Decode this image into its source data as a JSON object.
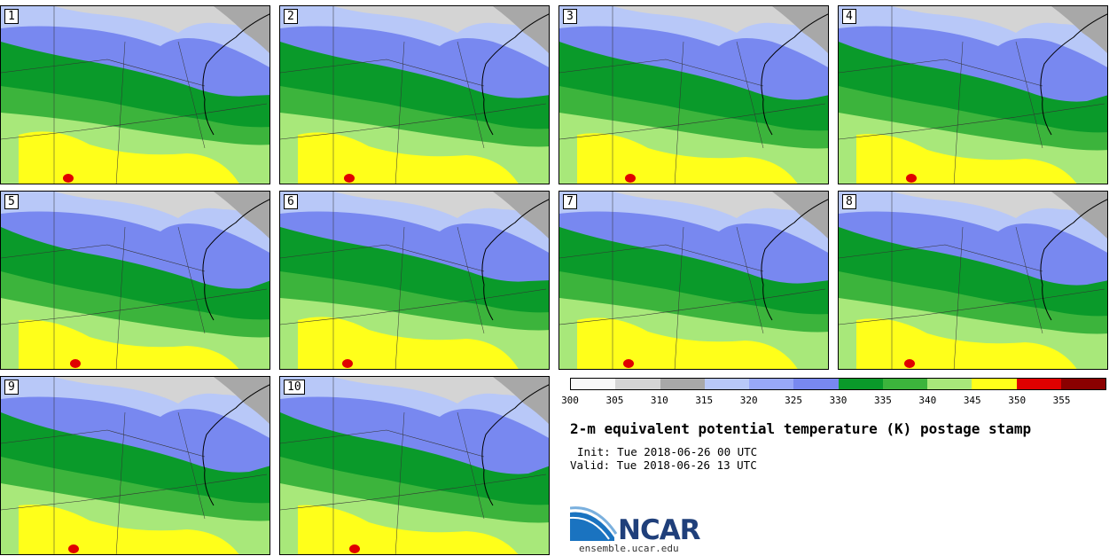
{
  "panels": [
    {
      "label": "1"
    },
    {
      "label": "2"
    },
    {
      "label": "3"
    },
    {
      "label": "4"
    },
    {
      "label": "5"
    },
    {
      "label": "6"
    },
    {
      "label": "7"
    },
    {
      "label": "8"
    },
    {
      "label": "9"
    },
    {
      "label": "10"
    }
  ],
  "colorbar": {
    "colors": [
      "#f8f8f8",
      "#d4d4d4",
      "#a8a8a8",
      "#b8c8f8",
      "#98a8f8",
      "#7888f0",
      "#0a9a2a",
      "#3cb43c",
      "#a8e87a",
      "#ffff1a",
      "#e00000",
      "#8a0000"
    ],
    "ticks": [
      "300",
      "305",
      "310",
      "315",
      "320",
      "325",
      "330",
      "335",
      "340",
      "345",
      "350",
      "355"
    ]
  },
  "title": "2-m equivalent potential temperature (K) postage stamp",
  "init": "Init: Tue 2018-06-26 00 UTC",
  "valid": "Valid: Tue 2018-06-26 13 UTC",
  "logo": {
    "name": "NCAR",
    "site": "ensemble.ucar.edu"
  }
}
